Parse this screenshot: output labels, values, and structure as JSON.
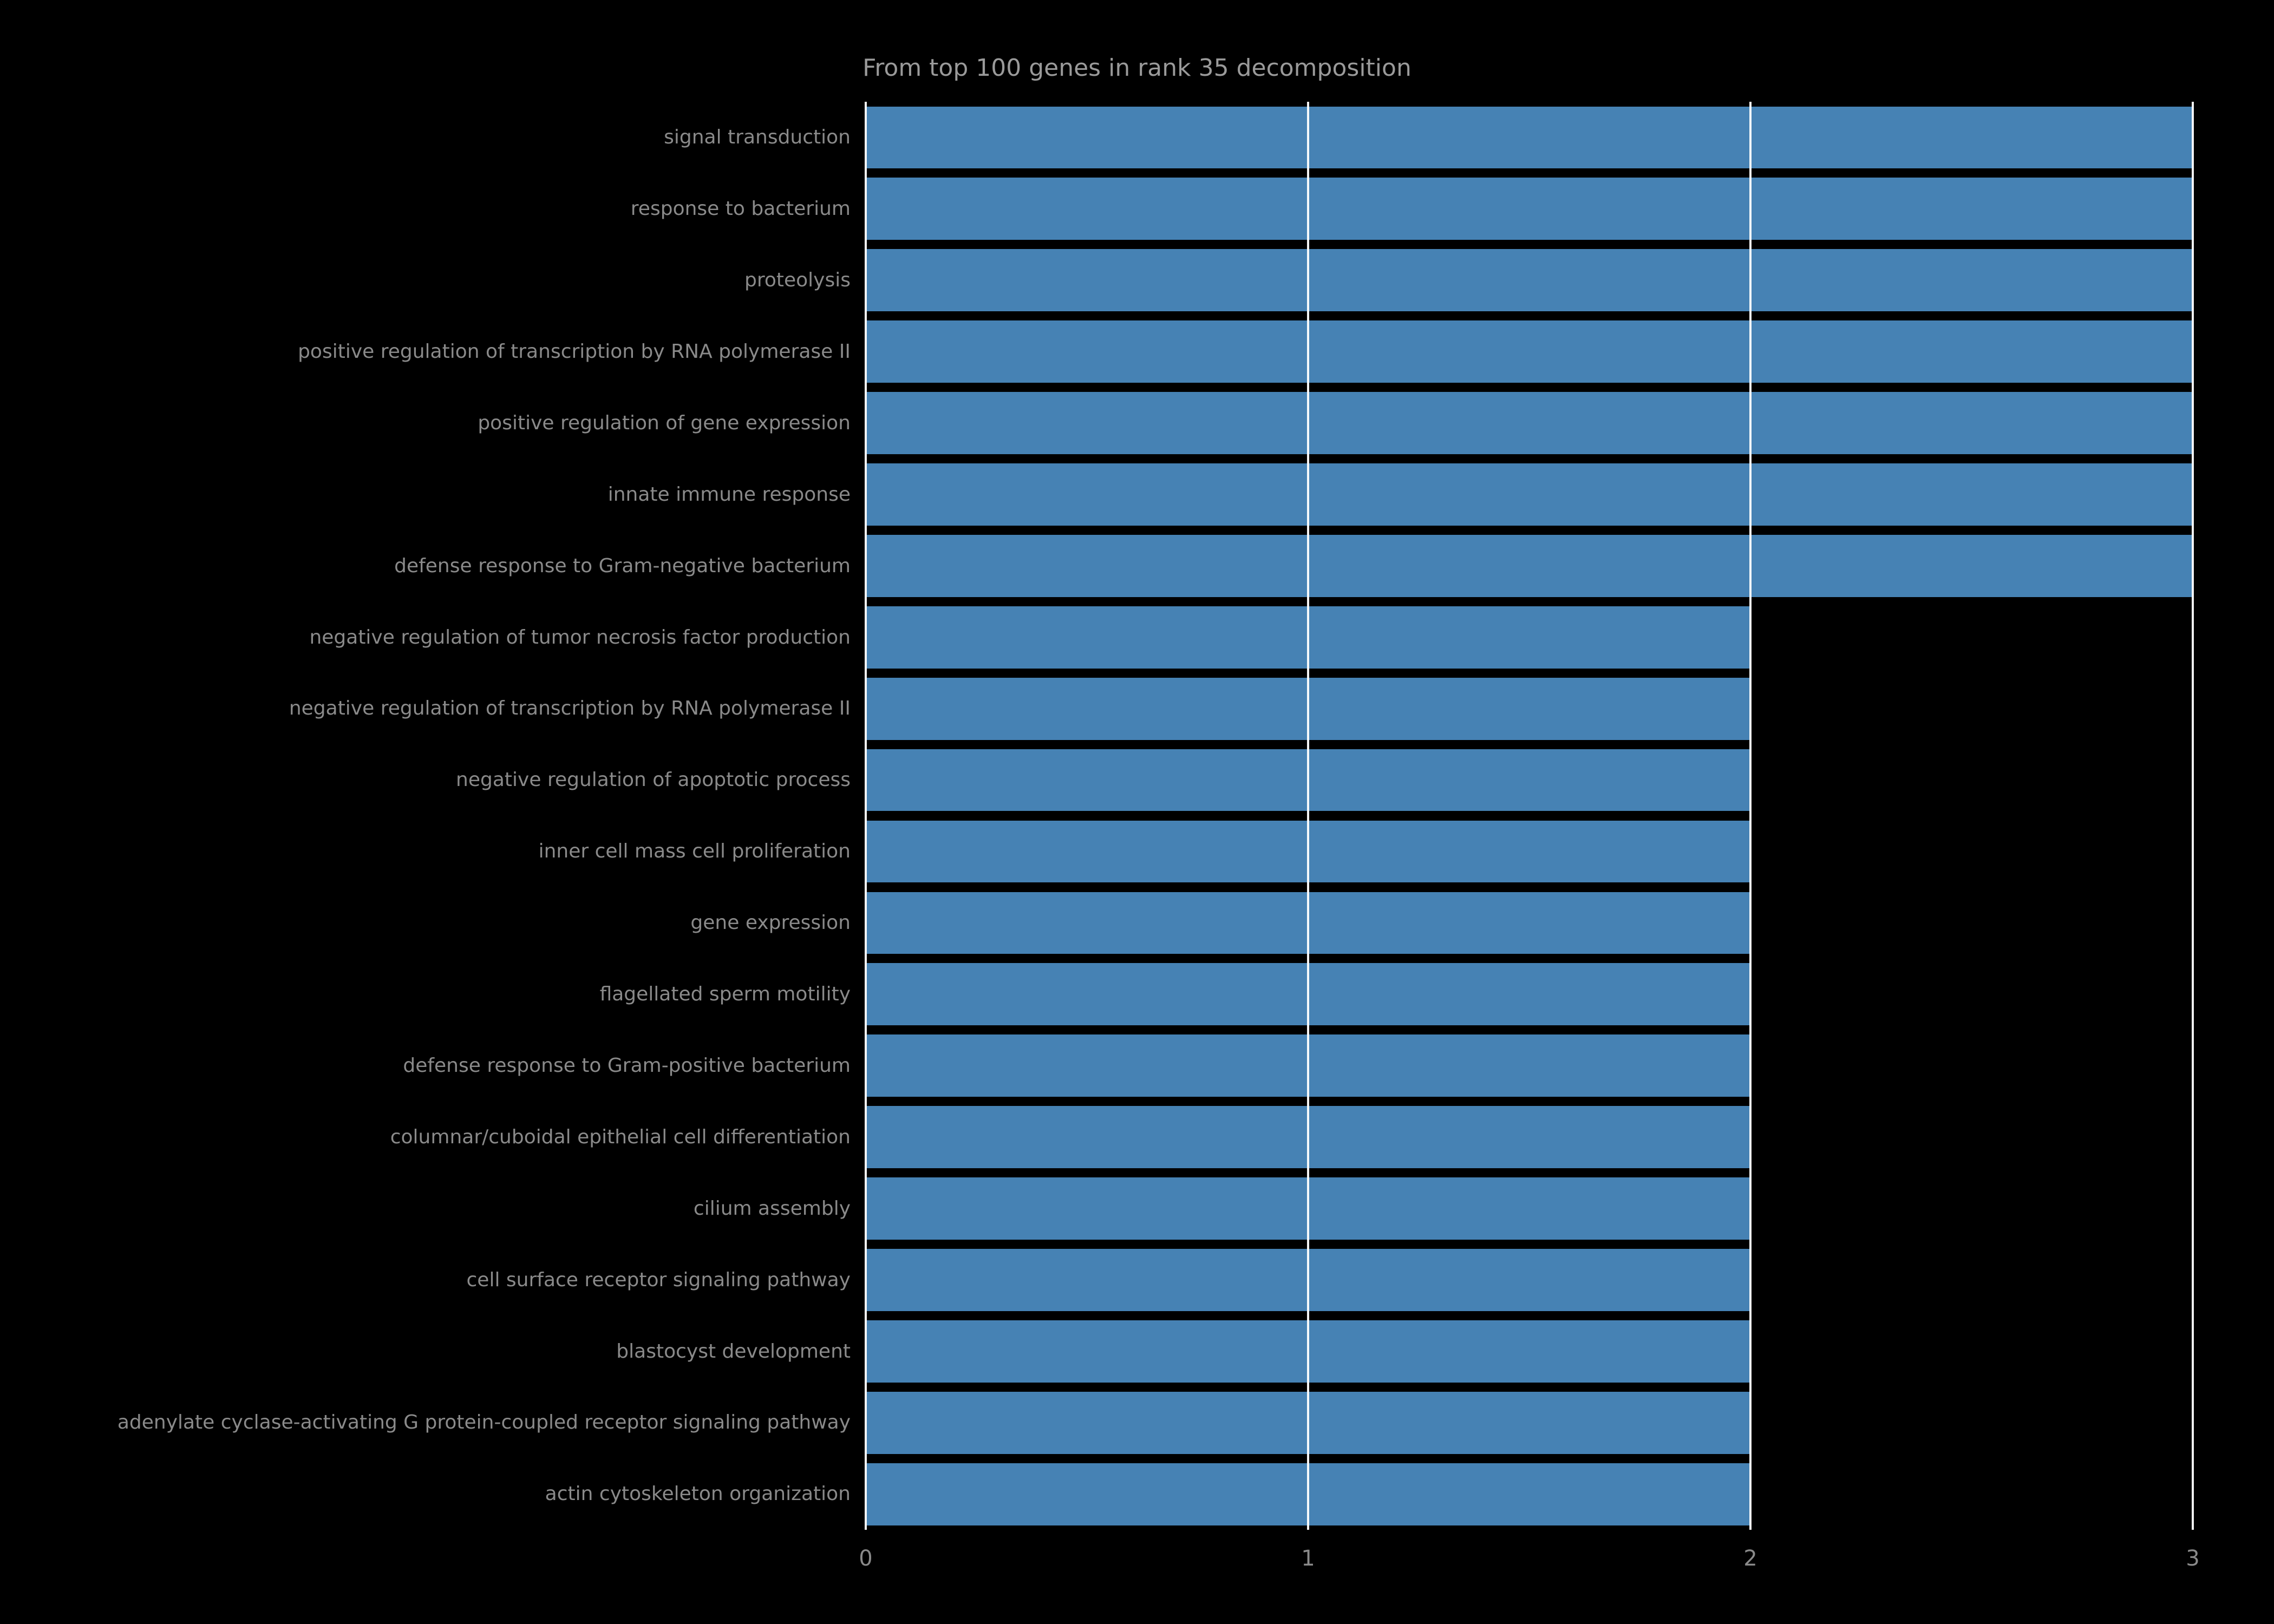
{
  "chart_data": {
    "type": "bar",
    "orientation": "horizontal",
    "title": "From top 100 genes in rank 35 decomposition",
    "categories": [
      "signal transduction",
      "response to bacterium",
      "proteolysis",
      "positive regulation of transcription by RNA polymerase II",
      "positive regulation of gene expression",
      "innate immune response",
      "defense response to Gram-negative bacterium",
      "negative regulation of tumor necrosis factor production",
      "negative regulation of transcription by RNA polymerase II",
      "negative regulation of apoptotic process",
      "inner cell mass cell proliferation",
      "gene expression",
      "flagellated sperm motility",
      "defense response to Gram-positive bacterium",
      "columnar/cuboidal epithelial cell differentiation",
      "cilium assembly",
      "cell surface receptor signaling pathway",
      "blastocyst development",
      "adenylate cyclase-activating G protein-coupled receptor signaling pathway",
      "actin cytoskeleton organization"
    ],
    "values": [
      3,
      3,
      3,
      3,
      3,
      3,
      3,
      2,
      2,
      2,
      2,
      2,
      2,
      2,
      2,
      2,
      2,
      2,
      2,
      2
    ],
    "xlabel": "",
    "ylabel": "",
    "xlim": [
      0,
      3
    ],
    "xticks": [
      0,
      1,
      2,
      3
    ],
    "grid": true,
    "legend": false,
    "colors": {
      "bar": "#4682B4",
      "background": "#000000",
      "grid": "#ffffff",
      "title_text": "#9a9a9a",
      "tick_text": "#8a8a8a"
    }
  }
}
